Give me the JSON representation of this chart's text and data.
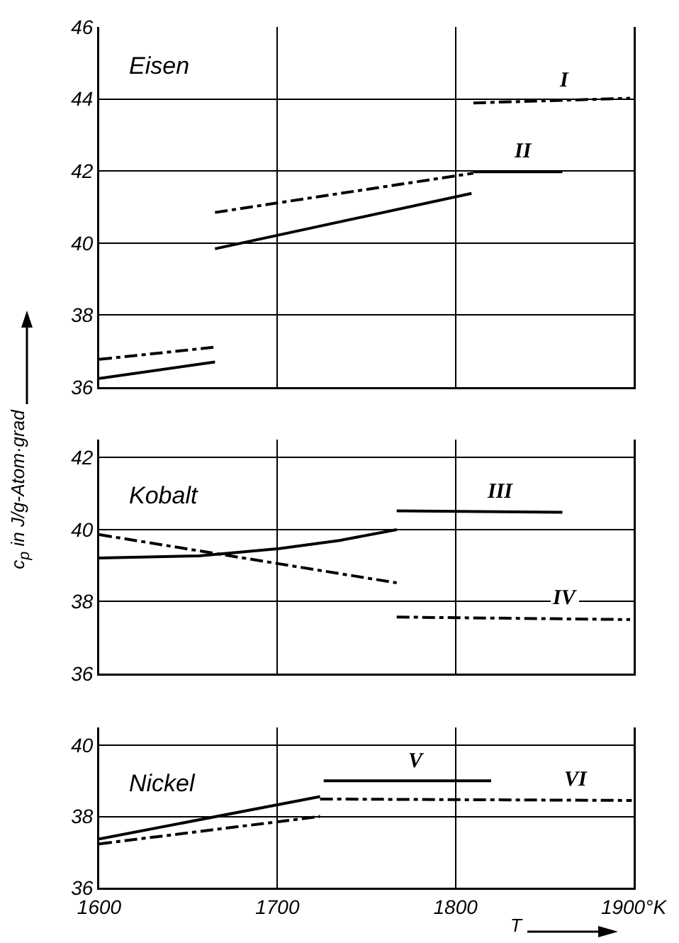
{
  "chart_data": [
    {
      "type": "line",
      "title": "Eisen",
      "xlim": [
        1600,
        1900
      ],
      "xticks": [
        1600,
        1700,
        1800
      ],
      "ylim": [
        36,
        46
      ],
      "yticks": [
        36,
        38,
        40,
        42,
        44,
        46
      ],
      "grid": true,
      "tick_labels": "y",
      "legend": false,
      "series": [
        {
          "color": "#000000",
          "line_style": "solid",
          "x": [
            1600,
            1665
          ],
          "values": [
            36.24,
            36.7
          ]
        },
        {
          "color": "#000000",
          "line_style": "dashed",
          "x": [
            1600,
            1665
          ],
          "values": [
            36.77,
            37.11
          ]
        },
        {
          "color": "#000000",
          "line_style": "solid",
          "x": [
            1665,
            1809
          ],
          "values": [
            39.84,
            41.38
          ]
        },
        {
          "color": "#000000",
          "line_style": "dashed",
          "x": [
            1665,
            1810
          ],
          "values": [
            40.85,
            41.94
          ]
        },
        {
          "name": "II",
          "color": "#000000",
          "line_style": "solid",
          "x": [
            1810,
            1860
          ],
          "values": [
            41.98,
            41.98
          ]
        },
        {
          "name": "I",
          "color": "#000000",
          "line_style": "dashed",
          "x": [
            1810,
            1898
          ],
          "values": [
            43.89,
            44.02
          ]
        }
      ]
    },
    {
      "type": "line",
      "title": "Kobalt",
      "ylabel": "c$_{p}$ in J/g-Atom·grad",
      "xlim": [
        1600,
        1900
      ],
      "xticks": [
        1600,
        1700,
        1800
      ],
      "ylim": [
        36,
        42.5
      ],
      "yticks": [
        36,
        38,
        40,
        42
      ],
      "grid": true,
      "tick_labels": "y",
      "legend": false,
      "series": [
        {
          "color": "#000000",
          "line_style": "solid",
          "x": [
            1600,
            1656,
            1701,
            1735,
            1767
          ],
          "values": [
            39.21,
            39.27,
            39.47,
            39.7,
            40.0
          ]
        },
        {
          "color": "#000000",
          "line_style": "dashed",
          "x": [
            1600,
            1767
          ],
          "values": [
            39.86,
            38.52
          ]
        },
        {
          "name": "III",
          "color": "#000000",
          "line_style": "solid",
          "x": [
            1767,
            1860
          ],
          "values": [
            40.52,
            40.48
          ]
        },
        {
          "name": "IV",
          "color": "#000000",
          "line_style": "dashed",
          "x": [
            1767,
            1898
          ],
          "values": [
            37.57,
            37.5
          ]
        }
      ]
    },
    {
      "type": "line",
      "title": "Nickel",
      "xlabel": "T",
      "xlim": [
        1600,
        1900
      ],
      "xticks": [
        1600,
        1700,
        1800,
        {
          "value": 1900,
          "label": "1900°K"
        }
      ],
      "ylim": [
        36,
        40.5
      ],
      "yticks": [
        36,
        38,
        40
      ],
      "grid": true,
      "legend": false,
      "series": [
        {
          "color": "#000000",
          "line_style": "solid",
          "x": [
            1600,
            1724
          ],
          "values": [
            37.37,
            38.56
          ]
        },
        {
          "color": "#000000",
          "line_style": "dashed",
          "x": [
            1600,
            1724
          ],
          "values": [
            37.23,
            38.0
          ]
        },
        {
          "name": "VI",
          "color": "#000000",
          "line_style": "dashed",
          "x": [
            1724,
            1899
          ],
          "values": [
            38.49,
            38.45
          ]
        },
        {
          "name": "V",
          "color": "#000000",
          "line_style": "solid",
          "x": [
            1726,
            1820
          ],
          "values": [
            39.0,
            39.0
          ]
        }
      ]
    }
  ]
}
